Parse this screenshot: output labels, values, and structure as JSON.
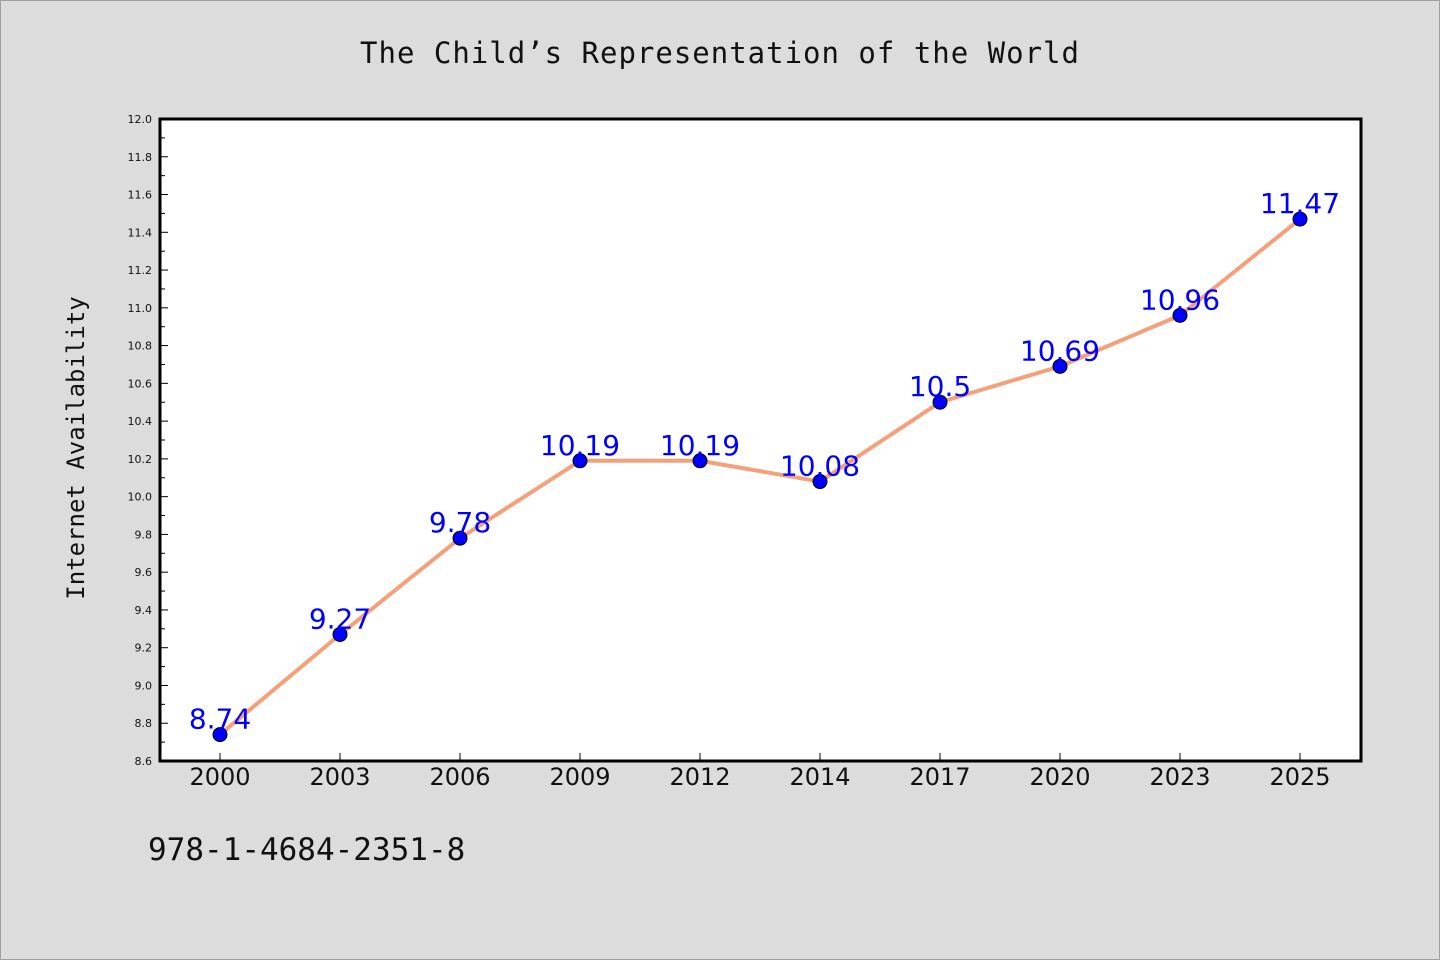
{
  "chart_data": {
    "type": "line",
    "title": "The Child’s Representation of the World",
    "xlabel": "",
    "ylabel": "Internet Availability",
    "categories": [
      "2000",
      "2003",
      "2006",
      "2009",
      "2012",
      "2014",
      "2017",
      "2020",
      "2023",
      "2025"
    ],
    "series": [
      {
        "values": [
          8.74,
          9.27,
          9.78,
          10.19,
          10.19,
          10.08,
          10.5,
          10.69,
          10.96,
          11.47
        ],
        "value_labels": [
          "8.74",
          "9.27",
          "9.78",
          "10.19",
          "10.19",
          "10.08",
          "10.5",
          "10.69",
          "10.96",
          "11.47"
        ],
        "line_color": "#f4a07a",
        "marker_color": "#0000ff"
      }
    ],
    "ylim": [
      8.6,
      12.0
    ],
    "yticks": [
      "8.6",
      "8.8",
      "9.0",
      "9.2",
      "9.4",
      "9.6",
      "9.8",
      "10.0",
      "10.2",
      "10.4",
      "10.6",
      "10.8",
      "11.0",
      "11.2",
      "11.4",
      "11.6",
      "11.8",
      "12.0"
    ],
    "grid": false,
    "legend": "none"
  },
  "footer": {
    "isbn": "978-1-4684-2351-8"
  },
  "colors": {
    "background": "#dcdcdc",
    "plot_background": "#ffffff",
    "line": "#f4a07a",
    "marker": "#0000ff",
    "label": "#0000ff"
  }
}
